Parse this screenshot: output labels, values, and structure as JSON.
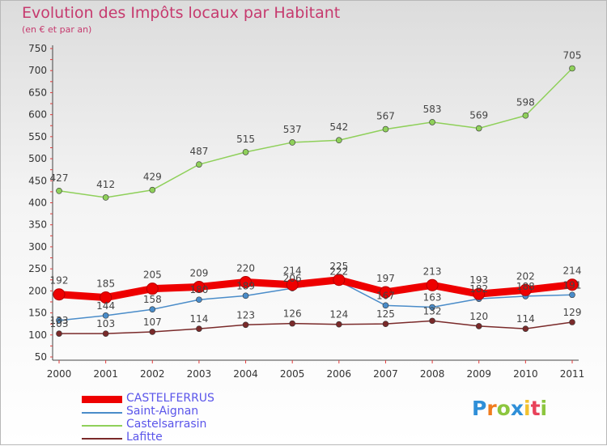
{
  "header": {
    "title": "Evolution des Impôts locaux par Habitant",
    "subtitle": "(en € et par an)"
  },
  "logo": {
    "text": "Proxiti"
  },
  "chart_data": {
    "type": "line",
    "title": "Evolution des Impôts locaux par Habitant",
    "subtitle": "(en € et par an)",
    "x": [
      "2000",
      "2001",
      "2002",
      "2003",
      "2004",
      "2005",
      "2006",
      "2007",
      "2008",
      "2009",
      "2010",
      "2011"
    ],
    "ylim": [
      50,
      750
    ],
    "yticks": [
      50,
      100,
      150,
      200,
      250,
      300,
      350,
      400,
      450,
      500,
      550,
      600,
      650,
      700,
      750
    ],
    "grid": false,
    "legend_position": "bottom-left",
    "series": [
      {
        "name": "CASTELFERRUS",
        "color": "#ee0000",
        "values": [
          192,
          185,
          205,
          209,
          220,
          214,
          225,
          197,
          213,
          193,
          202,
          214
        ]
      },
      {
        "name": "Saint-Aignan",
        "color": "#4a8cc9",
        "values": [
          133,
          144,
          158,
          180,
          189,
          206,
          222,
          167,
          163,
          182,
          188,
          191
        ]
      },
      {
        "name": "Castelsarrasin",
        "color": "#8fd05a",
        "values": [
          427,
          412,
          429,
          487,
          515,
          537,
          542,
          567,
          583,
          569,
          598,
          705
        ]
      },
      {
        "name": "Lafitte",
        "color": "#7a2a2a",
        "values": [
          103,
          103,
          107,
          114,
          123,
          126,
          124,
          125,
          132,
          120,
          114,
          129
        ]
      }
    ]
  }
}
